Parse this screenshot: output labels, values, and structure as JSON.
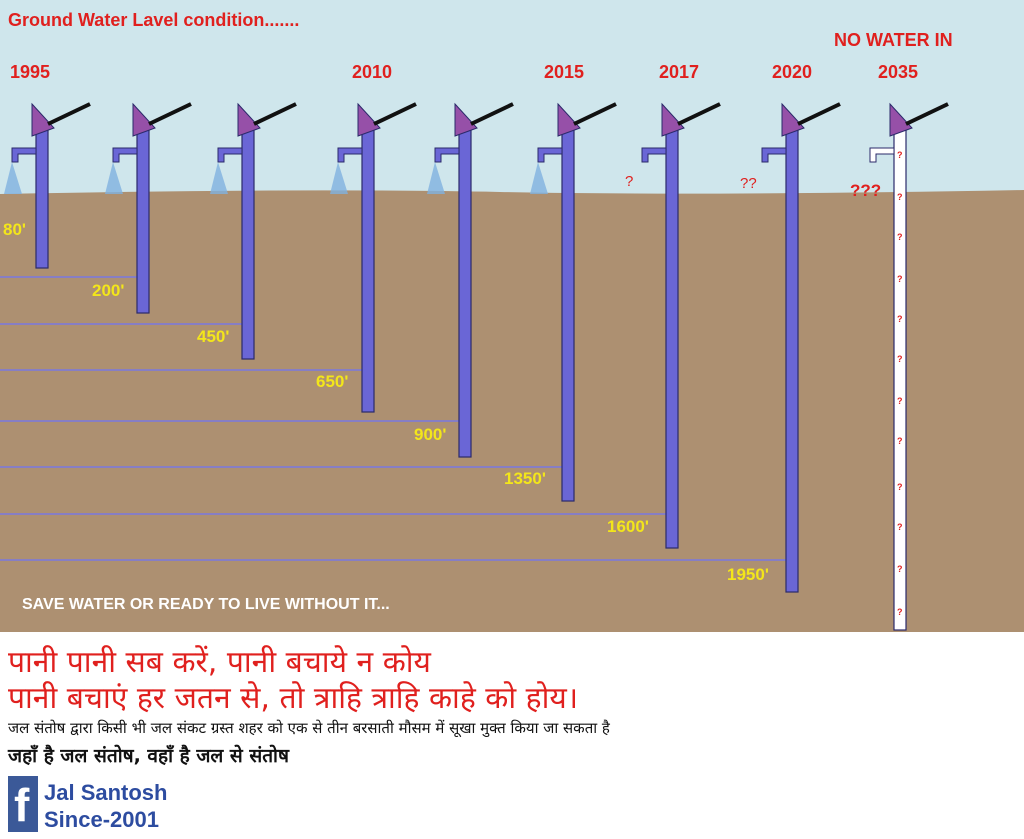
{
  "title": "Ground Water Lavel condition.......",
  "top_right_label": "NO WATER IN",
  "slogan": "SAVE WATER OR READY TO LIVE WITHOUT IT...",
  "wells": [
    {
      "year": "1995",
      "depth_label": "80'"
    },
    {
      "year": "",
      "depth_label": "200'"
    },
    {
      "year": "",
      "depth_label": "450'"
    },
    {
      "year": "2010",
      "depth_label": "650'"
    },
    {
      "year": "",
      "depth_label": "900'"
    },
    {
      "year": "2015",
      "depth_label": "1350'"
    },
    {
      "year": "2017",
      "depth_label": "1600'"
    },
    {
      "year": "2020",
      "depth_label": "1950'"
    },
    {
      "year": "2035",
      "depth_label": ""
    }
  ],
  "question_marks": {
    "well_2017": "?",
    "well_2020": "??",
    "well_2035": "???",
    "pipe_mark": "?"
  },
  "hindi": {
    "line1": "पानी पानी सब करें, पानी बचाये न कोय",
    "line2": "पानी बचाएं हर जतन से, तो त्राहि त्राहि काहे को होय।",
    "line3": "जल संतोष द्वारा किसी भी जल संकट ग्रस्त शहर को एक से तीन बरसाती मौसम में सूखा मुक्त किया जा सकता है",
    "line4": "जहाँ है जल संतोष, वहाँ है जल से संतोष"
  },
  "brand": {
    "logo_letter": "f",
    "name": "Jal Santosh",
    "since": "Since-2001"
  },
  "colors": {
    "sky": "#cfe6ec",
    "soil": "#ad9071",
    "pipe": "#6a66d6",
    "handle_cap": "#9650a8",
    "year_text": "#e0201e",
    "depth_text": "#f3e61a"
  }
}
